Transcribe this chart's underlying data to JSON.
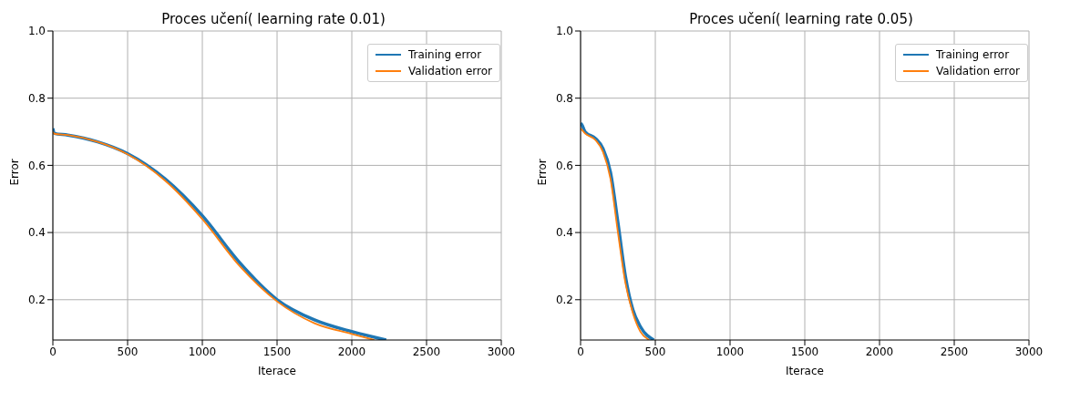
{
  "chart_data": [
    {
      "type": "line",
      "title": "Proces učení( learning rate 0.01)",
      "xlabel": "Iterace",
      "ylabel": "Error",
      "xlim": [
        0,
        3000
      ],
      "xticks": [
        0,
        500,
        1000,
        1500,
        2000,
        2500,
        3000
      ],
      "ylim": [
        0.08,
        1.0
      ],
      "yticks": [
        {
          "value": 0.2,
          "label": "0.2"
        },
        {
          "value": 0.4,
          "label": "0.4"
        },
        {
          "value": 0.6,
          "label": "0.6"
        },
        {
          "value": 0.8,
          "label": "0.8"
        },
        {
          "value": 1.0,
          "label": "1.0"
        }
      ],
      "grid": true,
      "legend": "top right",
      "marker": "none",
      "line_style": "solid",
      "series": [
        {
          "name": "Training error",
          "color": "#1f77b4",
          "x": [
            0,
            10,
            100,
            300,
            500,
            750,
            1000,
            1250,
            1500,
            1750,
            2000,
            2230
          ],
          "values": [
            0.71,
            0.695,
            0.69,
            0.67,
            0.635,
            0.56,
            0.45,
            0.31,
            0.2,
            0.14,
            0.105,
            0.08
          ]
        },
        {
          "name": "Validation error",
          "color": "#ff7f0e",
          "x": [
            0,
            10,
            100,
            300,
            500,
            750,
            1000,
            1250,
            1500,
            1750,
            2000,
            2150
          ],
          "values": [
            0.7,
            0.694,
            0.69,
            0.67,
            0.633,
            0.555,
            0.44,
            0.3,
            0.195,
            0.13,
            0.098,
            0.08
          ]
        }
      ]
    },
    {
      "type": "line",
      "title": "Proces učení( learning rate 0.05)",
      "xlabel": "Iterace",
      "ylabel": "Error",
      "xlim": [
        0,
        3000
      ],
      "xticks": [
        0,
        500,
        1000,
        1500,
        2000,
        2500,
        3000
      ],
      "ylim": [
        0.08,
        1.0
      ],
      "yticks": [
        {
          "value": 0.2,
          "label": "0.2"
        },
        {
          "value": 0.4,
          "label": "0.4"
        },
        {
          "value": 0.6,
          "label": "0.6"
        },
        {
          "value": 0.8,
          "label": "0.8"
        },
        {
          "value": 1.0,
          "label": "1.0"
        }
      ],
      "grid": true,
      "legend": "top right",
      "marker": "none",
      "line_style": "solid",
      "series": [
        {
          "name": "Training error",
          "color": "#1f77b4",
          "x": [
            0,
            10,
            30,
            100,
            150,
            200,
            250,
            300,
            350,
            400,
            490
          ],
          "values": [
            0.725,
            0.72,
            0.7,
            0.68,
            0.65,
            0.58,
            0.43,
            0.27,
            0.17,
            0.12,
            0.08
          ]
        },
        {
          "name": "Validation error",
          "color": "#ff7f0e",
          "x": [
            0,
            10,
            30,
            100,
            150,
            200,
            250,
            300,
            350,
            400,
            460
          ],
          "values": [
            0.71,
            0.705,
            0.695,
            0.675,
            0.64,
            0.56,
            0.4,
            0.25,
            0.16,
            0.105,
            0.08
          ]
        }
      ]
    }
  ]
}
